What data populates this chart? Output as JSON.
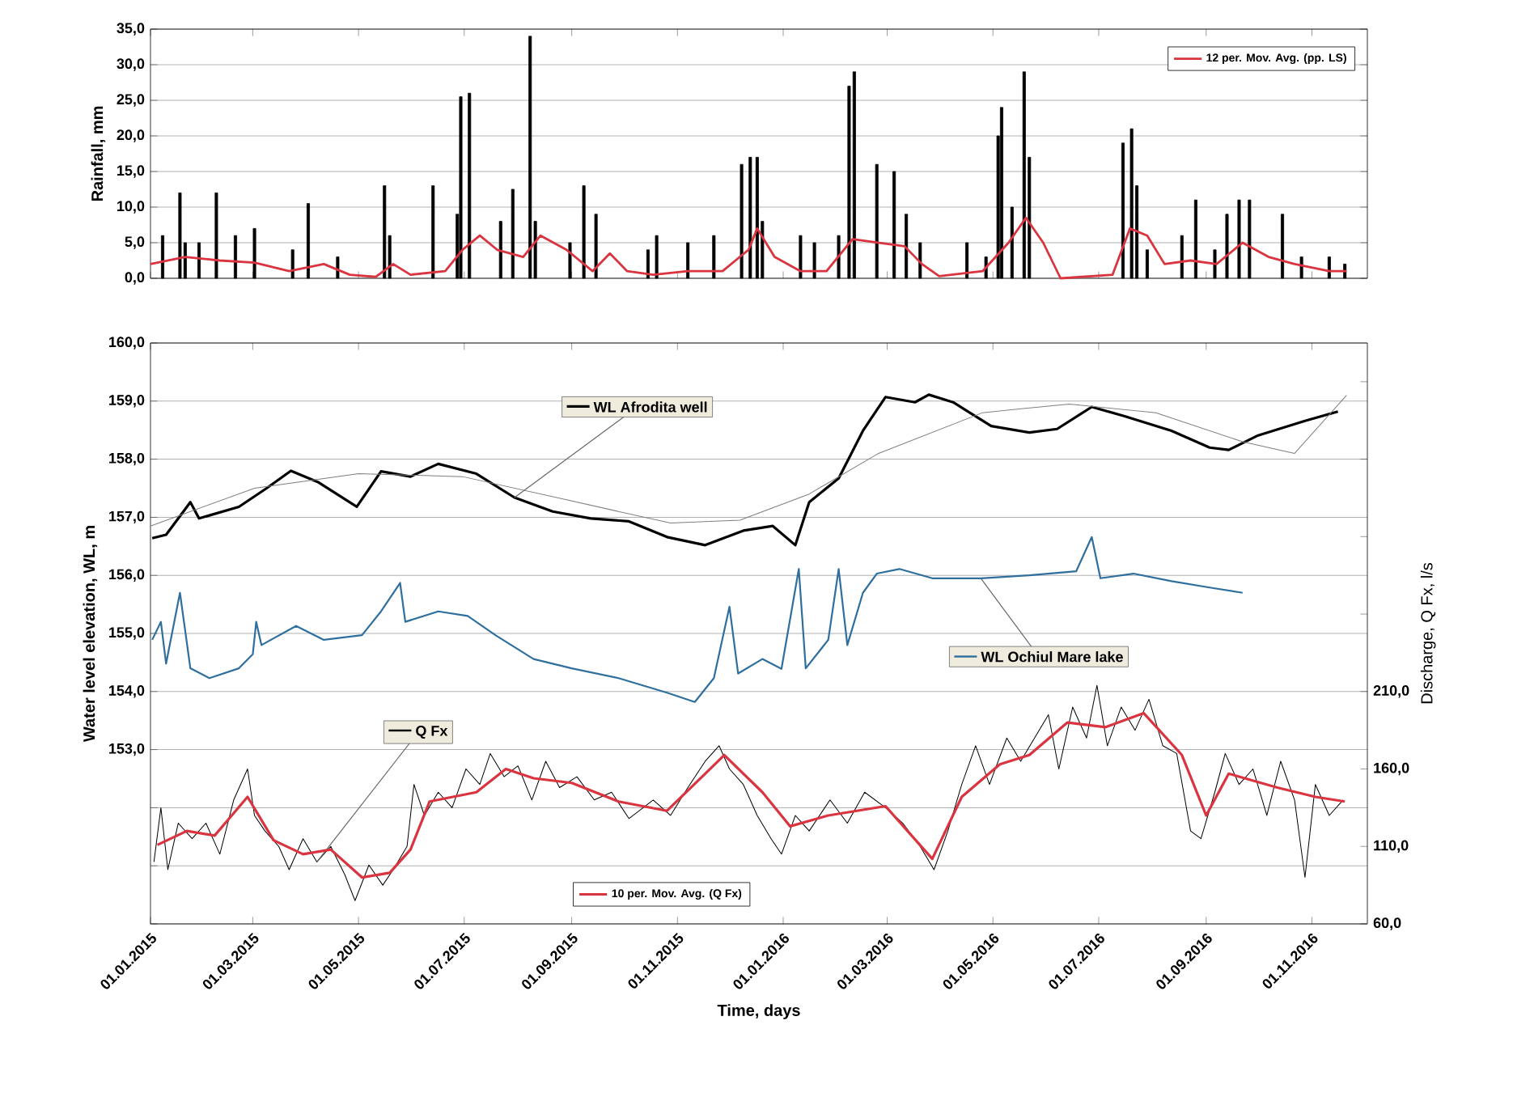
{
  "chart_data": [
    {
      "type": "bar",
      "ylabel": "Rainfall, mm",
      "xlim": [
        "2015-01-01",
        "2016-12-03"
      ],
      "xticks": [
        {
          "value": "2015-01-01",
          "label": null
        },
        {
          "value": "2015-03-01",
          "label": null
        },
        {
          "value": "2015-05-01",
          "label": null
        },
        {
          "value": "2015-07-01",
          "label": null
        },
        {
          "value": "2015-09-01",
          "label": null
        },
        {
          "value": "2015-11-01",
          "label": null
        },
        {
          "value": "2016-01-01",
          "label": null
        },
        {
          "value": "2016-03-01",
          "label": null
        },
        {
          "value": "2016-05-01",
          "label": null
        },
        {
          "value": "2016-07-01",
          "label": null
        },
        {
          "value": "2016-09-01",
          "label": null
        },
        {
          "value": "2016-11-01",
          "label": null
        }
      ],
      "ylim": [
        0,
        35
      ],
      "yticks": [
        {
          "value": 0,
          "label": "0,0"
        },
        {
          "value": 5,
          "label": "5,0"
        },
        {
          "value": 10,
          "label": "10,0"
        },
        {
          "value": 15,
          "label": "15,0"
        },
        {
          "value": 20,
          "label": "20,0"
        },
        {
          "value": 25,
          "label": "25,0"
        },
        {
          "value": 30,
          "label": "30,0"
        },
        {
          "value": 35,
          "label": "35,0"
        }
      ],
      "grid": "y",
      "legend": "top right",
      "tick_labels": "y",
      "series": [
        {
          "type": "bar",
          "color": "#000000",
          "x": [
            "2015-01-08",
            "2015-01-18",
            "2015-01-21",
            "2015-01-29",
            "2015-02-08",
            "2015-02-19",
            "2015-03-02",
            "2015-03-24",
            "2015-04-02",
            "2015-04-19",
            "2015-05-16",
            "2015-05-19",
            "2015-06-13",
            "2015-06-27",
            "2015-06-29",
            "2015-07-04",
            "2015-07-22",
            "2015-07-29",
            "2015-08-08",
            "2015-08-11",
            "2015-08-31",
            "2015-09-08",
            "2015-09-15",
            "2015-10-15",
            "2015-10-20",
            "2015-11-07",
            "2015-11-22",
            "2015-12-08",
            "2015-12-13",
            "2015-12-17",
            "2015-12-20",
            "2016-01-11",
            "2016-01-19",
            "2016-02-02",
            "2016-02-08",
            "2016-02-11",
            "2016-02-24",
            "2016-03-05",
            "2016-03-12",
            "2016-03-20",
            "2016-04-16",
            "2016-04-27",
            "2016-05-04",
            "2016-05-06",
            "2016-05-12",
            "2016-05-19",
            "2016-05-22",
            "2016-07-15",
            "2016-07-20",
            "2016-07-23",
            "2016-07-29",
            "2016-08-18",
            "2016-08-26",
            "2016-09-06",
            "2016-09-13",
            "2016-09-20",
            "2016-09-26",
            "2016-10-15",
            "2016-10-26",
            "2016-11-11",
            "2016-11-20"
          ],
          "values": [
            6,
            12,
            5,
            5,
            12,
            6,
            7,
            4,
            10.5,
            3,
            13,
            6,
            13,
            9,
            25.5,
            26,
            8,
            12.5,
            34,
            8,
            5,
            13,
            9,
            4,
            6,
            5,
            6,
            16,
            17,
            17,
            8,
            6,
            5,
            6,
            27,
            29,
            16,
            15,
            9,
            5,
            5,
            3,
            20,
            24,
            10,
            29,
            17,
            19,
            21,
            13,
            4,
            6,
            11,
            4,
            9,
            11,
            11,
            9,
            3,
            3,
            2
          ]
        },
        {
          "type": "line",
          "name": "12 per. Mov. Avg. (pp. LS)",
          "color": "#d9343f",
          "x": [
            "2015-01-01",
            "2015-01-21",
            "2015-02-10",
            "2015-03-02",
            "2015-03-22",
            "2015-04-11",
            "2015-04-26",
            "2015-05-11",
            "2015-05-21",
            "2015-05-31",
            "2015-06-20",
            "2015-06-30",
            "2015-07-10",
            "2015-07-20",
            "2015-08-04",
            "2015-08-14",
            "2015-08-29",
            "2015-09-13",
            "2015-09-23",
            "2015-10-03",
            "2015-10-18",
            "2015-11-07",
            "2015-11-27",
            "2015-12-12",
            "2015-12-17",
            "2015-12-27",
            "2016-01-11",
            "2016-01-26",
            "2016-02-10",
            "2016-02-25",
            "2016-03-11",
            "2016-03-21",
            "2016-03-31",
            "2016-04-25",
            "2016-05-10",
            "2016-05-20",
            "2016-05-30",
            "2016-06-09",
            "2016-07-09",
            "2016-07-19",
            "2016-07-29",
            "2016-08-08",
            "2016-08-23",
            "2016-09-07",
            "2016-09-22",
            "2016-10-07",
            "2016-10-22",
            "2016-11-11",
            "2016-11-21"
          ],
          "values": [
            2,
            3,
            2.5,
            2.2,
            1,
            2,
            0.5,
            0.2,
            2,
            0.5,
            1,
            4,
            6,
            4,
            3,
            6,
            4,
            1,
            3.5,
            1,
            0.5,
            1,
            1,
            4,
            7,
            3,
            1,
            1,
            5.5,
            5,
            4.5,
            2,
            0.3,
            1,
            5,
            8.5,
            5,
            0,
            0.5,
            7,
            6,
            2,
            2.5,
            2,
            5,
            3,
            2,
            1,
            1
          ]
        }
      ]
    },
    {
      "type": "line",
      "xlabel": "Time, days",
      "ylabel": "Water level elevation, WL, m",
      "y2label": "Discharge, Q Fx, l/s",
      "xlim": [
        "2015-01-01",
        "2016-12-03"
      ],
      "xticks": [
        {
          "value": "2015-01-01",
          "label": "01.01.2015"
        },
        {
          "value": "2015-03-01",
          "label": "01.03.2015"
        },
        {
          "value": "2015-05-01",
          "label": "01.05.2015"
        },
        {
          "value": "2015-07-01",
          "label": "01.07.2015"
        },
        {
          "value": "2015-09-01",
          "label": "01.09.2015"
        },
        {
          "value": "2015-11-01",
          "label": "01.11.2015"
        },
        {
          "value": "2016-01-01",
          "label": "01.01.2016"
        },
        {
          "value": "2016-03-01",
          "label": "01.03.2016"
        },
        {
          "value": "2016-05-01",
          "label": "01.05.2016"
        },
        {
          "value": "2016-07-01",
          "label": "01.07.2016"
        },
        {
          "value": "2016-09-01",
          "label": "01.09.2016"
        },
        {
          "value": "2016-11-01",
          "label": "01.11.2016"
        }
      ],
      "ylim": [
        150,
        160
      ],
      "yticks": [
        {
          "value": 150,
          "label": null
        },
        {
          "value": 151,
          "label": null
        },
        {
          "value": 152,
          "label": null
        },
        {
          "value": 153,
          "label": "153,0"
        },
        {
          "value": 154,
          "label": "154,0"
        },
        {
          "value": 155,
          "label": "155,0"
        },
        {
          "value": 156,
          "label": "156,0"
        },
        {
          "value": 157,
          "label": "157,0"
        },
        {
          "value": 158,
          "label": "158,0"
        },
        {
          "value": 159,
          "label": "159,0"
        },
        {
          "value": 160,
          "label": "160,0"
        }
      ],
      "y2lim": [
        60,
        435
      ],
      "y2ticks": [
        {
          "value": 60,
          "label": "60,0"
        },
        {
          "value": 110,
          "label": "110,0"
        },
        {
          "value": 160,
          "label": "160,0"
        },
        {
          "value": 210,
          "label": "210,0"
        },
        {
          "value": 260,
          "label": null
        },
        {
          "value": 310,
          "label": null
        },
        {
          "value": 360,
          "label": null
        },
        {
          "value": 410,
          "label": null
        }
      ],
      "grid": "y",
      "legend": "bottom",
      "series": [
        {
          "name": "WL Afrodita well",
          "color": "#000000",
          "x": [
            "2015-01-02",
            "2015-01-10",
            "2015-01-24",
            "2015-01-29",
            "2015-02-21",
            "2015-03-09",
            "2015-03-23",
            "2015-04-08",
            "2015-04-30",
            "2015-05-14",
            "2015-05-31",
            "2015-06-16",
            "2015-07-08",
            "2015-07-30",
            "2015-08-21",
            "2015-09-12",
            "2015-10-04",
            "2015-10-26",
            "2015-11-17",
            "2015-12-09",
            "2015-12-26",
            "2016-01-08",
            "2016-01-16",
            "2016-02-02",
            "2016-02-16",
            "2016-02-29",
            "2016-03-17",
            "2016-03-25",
            "2016-04-08",
            "2016-04-30",
            "2016-05-22",
            "2016-06-07",
            "2016-06-27",
            "2016-07-16",
            "2016-08-12",
            "2016-09-03",
            "2016-09-14",
            "2016-10-01",
            "2016-10-28",
            "2016-11-16"
          ],
          "values": [
            156.64,
            156.7,
            157.26,
            156.98,
            157.18,
            157.5,
            157.8,
            157.6,
            157.18,
            157.79,
            157.7,
            157.92,
            157.75,
            157.34,
            157.1,
            156.98,
            156.93,
            156.66,
            156.52,
            156.77,
            156.85,
            156.52,
            157.26,
            157.67,
            158.49,
            159.07,
            158.98,
            159.11,
            158.98,
            158.57,
            158.46,
            158.52,
            158.9,
            158.74,
            158.49,
            158.2,
            158.16,
            158.41,
            158.66,
            158.82
          ]
        },
        {
          "color": "#7f7f7f",
          "x": [
            "2015-01-01",
            "2015-03-02",
            "2015-05-01",
            "2015-06-30",
            "2015-08-29",
            "2015-10-28",
            "2015-12-07",
            "2016-01-16",
            "2016-02-25",
            "2016-04-25",
            "2016-06-14",
            "2016-08-03",
            "2016-09-22",
            "2016-10-22",
            "2016-11-21"
          ],
          "values": [
            156.85,
            157.5,
            157.75,
            157.7,
            157.3,
            156.9,
            156.95,
            157.4,
            158.1,
            158.8,
            158.95,
            158.8,
            158.3,
            158.1,
            159.1
          ]
        },
        {
          "name": "WL Ochiul Mare lake",
          "color": "#2e6f9e",
          "x": [
            "2015-01-02",
            "2015-01-07",
            "2015-01-10",
            "2015-01-18",
            "2015-01-24",
            "2015-02-04",
            "2015-02-21",
            "2015-03-01",
            "2015-03-03",
            "2015-03-06",
            "2015-03-26",
            "2015-04-11",
            "2015-05-03",
            "2015-05-14",
            "2015-05-25",
            "2015-05-28",
            "2015-06-16",
            "2015-07-03",
            "2015-07-19",
            "2015-08-10",
            "2015-09-01",
            "2015-09-28",
            "2015-10-26",
            "2015-11-11",
            "2015-11-22",
            "2015-12-01",
            "2015-12-06",
            "2015-12-20",
            "2015-12-31",
            "2016-01-10",
            "2016-01-14",
            "2016-01-27",
            "2016-02-02",
            "2016-02-07",
            "2016-02-16",
            "2016-02-24",
            "2016-03-08",
            "2016-03-27",
            "2016-04-24",
            "2016-05-22",
            "2016-06-18",
            "2016-06-27",
            "2016-07-02",
            "2016-07-21",
            "2016-08-12",
            "2016-09-03",
            "2016-09-22"
          ],
          "values": [
            154.89,
            155.2,
            154.48,
            155.7,
            154.4,
            154.23,
            154.4,
            154.64,
            155.2,
            154.8,
            155.13,
            154.89,
            154.97,
            155.38,
            155.87,
            155.2,
            155.38,
            155.3,
            154.97,
            154.56,
            154.4,
            154.23,
            153.98,
            153.82,
            154.23,
            155.46,
            154.31,
            154.56,
            154.39,
            156.11,
            154.4,
            154.89,
            156.11,
            154.8,
            155.7,
            156.03,
            156.11,
            155.95,
            155.95,
            156.0,
            156.07,
            156.66,
            155.95,
            156.03,
            155.9,
            155.79,
            155.7
          ]
        },
        {
          "name": "Q Fx",
          "color": "#000000",
          "axis": "y2",
          "x": [
            "2015-01-03",
            "2015-01-07",
            "2015-01-11",
            "2015-01-17",
            "2015-01-25",
            "2015-02-02",
            "2015-02-10",
            "2015-02-18",
            "2015-02-26",
            "2015-03-02",
            "2015-03-08",
            "2015-03-16",
            "2015-03-22",
            "2015-03-30",
            "2015-04-07",
            "2015-04-15",
            "2015-04-23",
            "2015-04-29",
            "2015-05-07",
            "2015-05-15",
            "2015-05-21",
            "2015-05-29",
            "2015-06-02",
            "2015-06-08",
            "2015-06-16",
            "2015-06-24",
            "2015-07-02",
            "2015-07-10",
            "2015-07-16",
            "2015-07-24",
            "2015-08-01",
            "2015-08-09",
            "2015-08-17",
            "2015-08-25",
            "2015-09-04",
            "2015-09-14",
            "2015-09-24",
            "2015-10-04",
            "2015-10-18",
            "2015-10-28",
            "2015-11-07",
            "2015-11-17",
            "2015-11-25",
            "2015-12-01",
            "2015-12-09",
            "2015-12-17",
            "2015-12-25",
            "2015-12-31",
            "2016-01-08",
            "2016-01-16",
            "2016-01-28",
            "2016-02-07",
            "2016-02-17",
            "2016-02-29",
            "2016-03-10",
            "2016-03-20",
            "2016-03-28",
            "2016-04-05",
            "2016-04-13",
            "2016-04-21",
            "2016-04-29",
            "2016-05-09",
            "2016-05-17",
            "2016-05-25",
            "2016-06-02",
            "2016-06-08",
            "2016-06-16",
            "2016-06-24",
            "2016-06-30",
            "2016-07-06",
            "2016-07-14",
            "2016-07-22",
            "2016-07-30",
            "2016-08-07",
            "2016-08-15",
            "2016-08-23",
            "2016-08-29",
            "2016-09-06",
            "2016-09-12",
            "2016-09-20",
            "2016-09-28",
            "2016-10-06",
            "2016-10-14",
            "2016-10-22",
            "2016-10-28",
            "2016-11-03",
            "2016-11-11",
            "2016-11-19"
          ],
          "values": [
            100,
            135,
            95,
            125,
            115,
            125,
            105,
            140,
            160,
            130,
            120,
            110,
            95,
            115,
            100,
            110,
            92,
            75,
            98,
            85,
            95,
            110,
            150,
            130,
            145,
            135,
            160,
            150,
            170,
            155,
            162,
            140,
            165,
            148,
            155,
            140,
            145,
            128,
            140,
            130,
            148,
            165,
            175,
            160,
            150,
            130,
            115,
            105,
            130,
            120,
            140,
            125,
            145,
            135,
            125,
            110,
            95,
            120,
            150,
            175,
            150,
            180,
            165,
            180,
            195,
            160,
            200,
            180,
            214,
            175,
            200,
            185,
            205,
            175,
            170,
            120,
            115,
            145,
            170,
            150,
            160,
            130,
            165,
            140,
            90,
            150,
            130,
            140
          ]
        },
        {
          "name": "10 per. Mov. Avg. (Q Fx)",
          "color": "#d9343f",
          "axis": "y2",
          "x": [
            "2015-01-05",
            "2015-01-22",
            "2015-02-07",
            "2015-02-26",
            "2015-03-13",
            "2015-03-30",
            "2015-04-15",
            "2015-05-03",
            "2015-05-19",
            "2015-05-31",
            "2015-06-11",
            "2015-07-08",
            "2015-07-25",
            "2015-08-10",
            "2015-09-01",
            "2015-09-28",
            "2015-10-26",
            "2015-11-17",
            "2015-11-28",
            "2015-12-20",
            "2016-01-05",
            "2016-01-27",
            "2016-02-29",
            "2016-03-27",
            "2016-04-13",
            "2016-05-05",
            "2016-05-22",
            "2016-06-13",
            "2016-07-05",
            "2016-07-27",
            "2016-08-18",
            "2016-09-01",
            "2016-09-14",
            "2016-10-12",
            "2016-11-03",
            "2016-11-20"
          ],
          "values": [
            111,
            120,
            117,
            142,
            114,
            105,
            108,
            90,
            93,
            108,
            139,
            145,
            160,
            154,
            151,
            139,
            133,
            157,
            169,
            145,
            123,
            130,
            136,
            102,
            142,
            163,
            169,
            190,
            187,
            196,
            169,
            130,
            157,
            148,
            142,
            139
          ]
        }
      ]
    }
  ]
}
